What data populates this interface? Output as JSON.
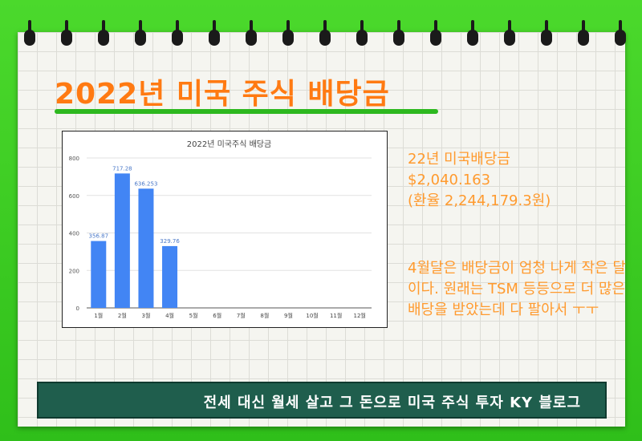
{
  "title": "2022년 미국 주식 배당금",
  "summary": {
    "line1": "22년 미국배당금",
    "line2": "$2,040.163",
    "line3": "(환율 2,244,179.3원)"
  },
  "note": "4월달은 배당금이 엄청 나게 작은 달이다. 원래는 TSM 등등으로 더 많은 배당을 받았는데 다 팔아서 ㅜㅜ",
  "footer": "전세 대신 월세 살고 그 돈으로 미국 주식 투자 KY 블로그",
  "colors": {
    "bar": "#4285f4",
    "title": "#ff7a12",
    "accent_text": "#ff9a2e",
    "footer_bg": "#1f5e4d",
    "frame": "#3ccb22"
  },
  "chart_data": {
    "type": "bar",
    "title": "2022년 미국주식 배당금",
    "categories": [
      "1월",
      "2월",
      "3월",
      "4월",
      "5월",
      "6월",
      "7월",
      "8월",
      "9월",
      "10월",
      "11월",
      "12월"
    ],
    "values": [
      356.87,
      717.28,
      636.253,
      329.76,
      null,
      null,
      null,
      null,
      null,
      null,
      null,
      null
    ],
    "value_labels": [
      "356.87",
      "717.28",
      "636.253",
      "329.76",
      "",
      "",
      "",
      "",
      "",
      "",
      "",
      ""
    ],
    "ylim": [
      0,
      800
    ],
    "yticks": [
      0,
      200,
      400,
      600,
      800
    ],
    "grid": true,
    "xlabel": "",
    "ylabel": ""
  }
}
